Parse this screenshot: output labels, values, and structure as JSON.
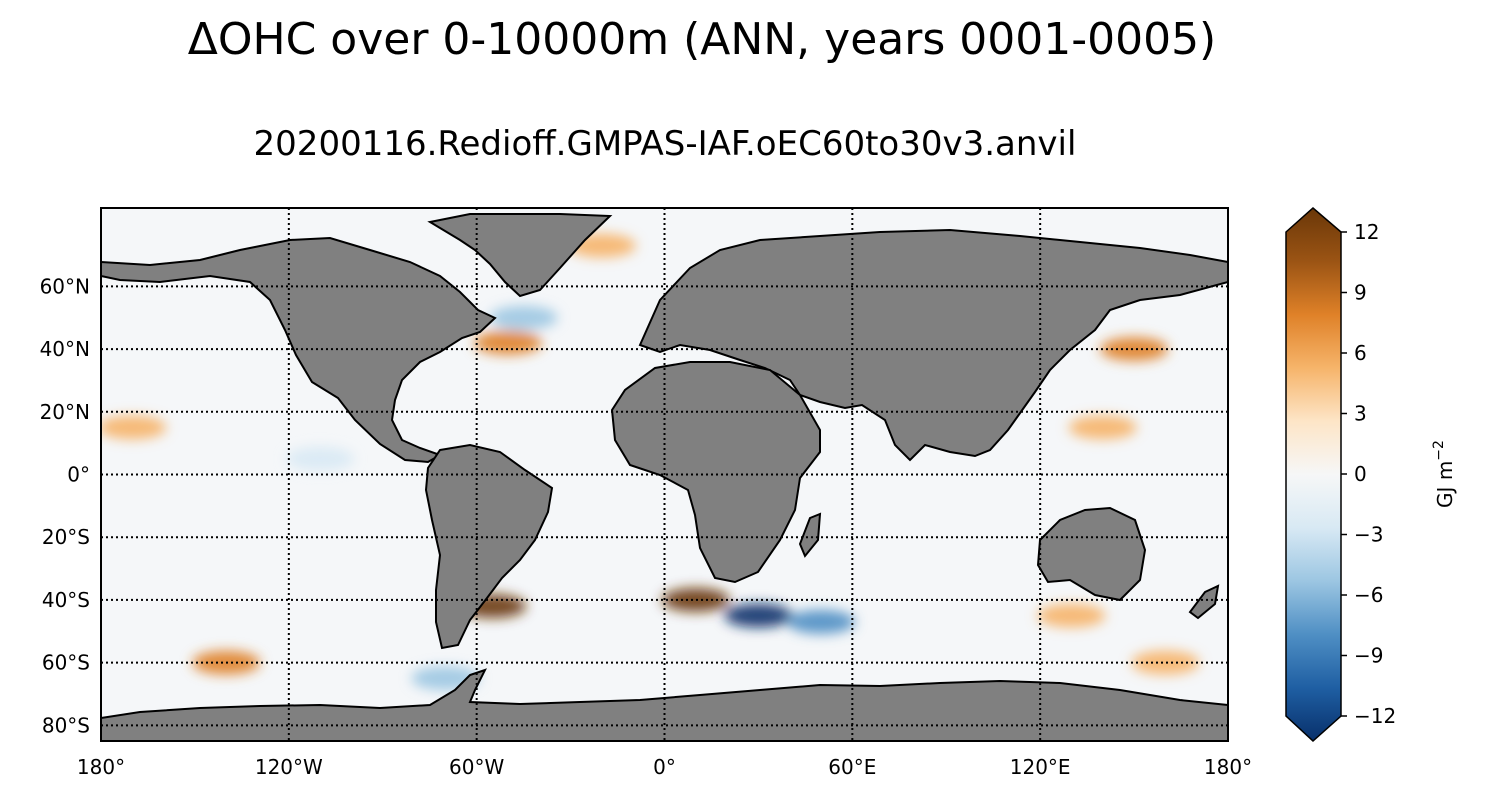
{
  "figure": {
    "title": "ΔOHC over 0-10000m (ANN, years 0001-0005)",
    "subtitle": "20200116.Redioff.GMPAS-IAF.oEC60to30v3.anvil"
  },
  "map": {
    "projection": "PlateCarree",
    "land_color": "#808080",
    "coastline_color": "#000000",
    "gridlines": "dotted",
    "lon_range": [
      -180,
      180
    ],
    "lat_range": [
      -85,
      85
    ],
    "lon_ticks": [
      {
        "value": -180,
        "label": "180°"
      },
      {
        "value": -120,
        "label": "120°W"
      },
      {
        "value": -60,
        "label": "60°W"
      },
      {
        "value": 0,
        "label": "0°"
      },
      {
        "value": 60,
        "label": "60°E"
      },
      {
        "value": 120,
        "label": "120°E"
      },
      {
        "value": 180,
        "label": "180°"
      }
    ],
    "lat_ticks": [
      {
        "value": 60,
        "label": "60°N"
      },
      {
        "value": 40,
        "label": "40°N"
      },
      {
        "value": 20,
        "label": "20°N"
      },
      {
        "value": 0,
        "label": "0°"
      },
      {
        "value": -20,
        "label": "20°S"
      },
      {
        "value": -40,
        "label": "40°S"
      },
      {
        "value": -60,
        "label": "60°S"
      },
      {
        "value": -80,
        "label": "80°S"
      }
    ]
  },
  "colorbar": {
    "label": "GJ m",
    "label_exponent": "−2",
    "range": [
      -12,
      12
    ],
    "extend": "both",
    "ticks": [
      {
        "value": 12,
        "label": "12"
      },
      {
        "value": 9,
        "label": "9"
      },
      {
        "value": 6,
        "label": "6"
      },
      {
        "value": 3,
        "label": "3"
      },
      {
        "value": 0,
        "label": "0"
      },
      {
        "value": -3,
        "label": "−3"
      },
      {
        "value": -6,
        "label": "−6"
      },
      {
        "value": -9,
        "label": "−9"
      },
      {
        "value": -12,
        "label": "−12"
      }
    ],
    "colors_low_to_high": [
      "#08306b",
      "#1f5fa3",
      "#4f8fc4",
      "#9cc6e2",
      "#d8e9f4",
      "#f6f7f7",
      "#fde5c7",
      "#f6b46a",
      "#df8128",
      "#9b5414",
      "#6a3708"
    ]
  },
  "anomalies": [
    {
      "lon": 10,
      "lat": -40,
      "value": 12
    },
    {
      "lon": -55,
      "lat": -42,
      "value": 11
    },
    {
      "lon": 150,
      "lat": 40,
      "value": 7
    },
    {
      "lon": 140,
      "lat": 15,
      "value": 5
    },
    {
      "lon": -170,
      "lat": 15,
      "value": 5
    },
    {
      "lon": -140,
      "lat": -60,
      "value": 6
    },
    {
      "lon": 30,
      "lat": -45,
      "value": -12
    },
    {
      "lon": 50,
      "lat": -47,
      "value": -7
    },
    {
      "lon": -45,
      "lat": 50,
      "value": -5
    },
    {
      "lon": -50,
      "lat": 42,
      "value": 7
    },
    {
      "lon": -70,
      "lat": -65,
      "value": -4
    },
    {
      "lon": 160,
      "lat": -60,
      "value": 4
    },
    {
      "lon": 130,
      "lat": -45,
      "value": 4
    },
    {
      "lon": -20,
      "lat": 73,
      "value": 4
    },
    {
      "lon": -110,
      "lat": 5,
      "value": -3
    }
  ]
}
